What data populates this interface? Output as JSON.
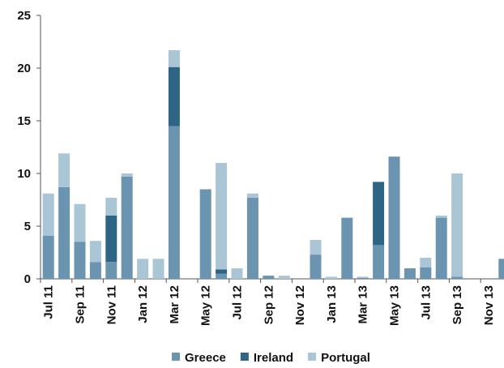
{
  "chart_data": {
    "type": "stacked_bar",
    "categories": [
      "Jul 11",
      null,
      "Sep 11",
      null,
      "Nov 11",
      null,
      "Jan 12",
      null,
      "Mar 12",
      null,
      "May 12",
      null,
      "Jul 12",
      null,
      "Sep 12",
      null,
      "Nov 12",
      null,
      "Jan 13",
      null,
      "Mar 13",
      null,
      "May 13",
      null,
      "Jul 13",
      null,
      "Sep 13",
      null,
      "Nov 13",
      null
    ],
    "series": [
      {
        "name": "Greece",
        "color": "#6b94b0",
        "values": [
          4.1,
          8.7,
          3.5,
          1.6,
          1.6,
          9.7,
          0,
          0,
          14.5,
          0,
          8.5,
          0.5,
          0,
          7.7,
          0.3,
          0,
          0,
          2.3,
          0,
          5.8,
          0.1,
          3.2,
          11.6,
          1,
          1.1,
          5.8,
          0.2,
          0,
          0,
          1.9
        ]
      },
      {
        "name": "Ireland",
        "color": "#2e6585",
        "values": [
          0,
          0,
          0,
          0,
          4.4,
          0,
          0,
          0,
          5.6,
          0,
          0,
          0.4,
          0,
          0,
          0,
          0,
          0,
          0,
          0,
          0,
          0,
          6.0,
          0,
          0,
          0,
          0,
          0,
          0,
          0,
          0
        ]
      },
      {
        "name": "Portugal",
        "color": "#aac5d4",
        "values": [
          4.0,
          3.2,
          3.6,
          2.0,
          1.7,
          0.3,
          1.9,
          1.9,
          1.6,
          0,
          0,
          10.1,
          1,
          0.4,
          0,
          0.3,
          0,
          1.4,
          0.2,
          0,
          0.1,
          0,
          0,
          0,
          0.9,
          0.2,
          9.8,
          0,
          0,
          0
        ]
      }
    ],
    "ylim": [
      0,
      25
    ],
    "yticks": [
      0,
      5,
      10,
      15,
      20,
      25
    ],
    "legend": "bottom"
  }
}
